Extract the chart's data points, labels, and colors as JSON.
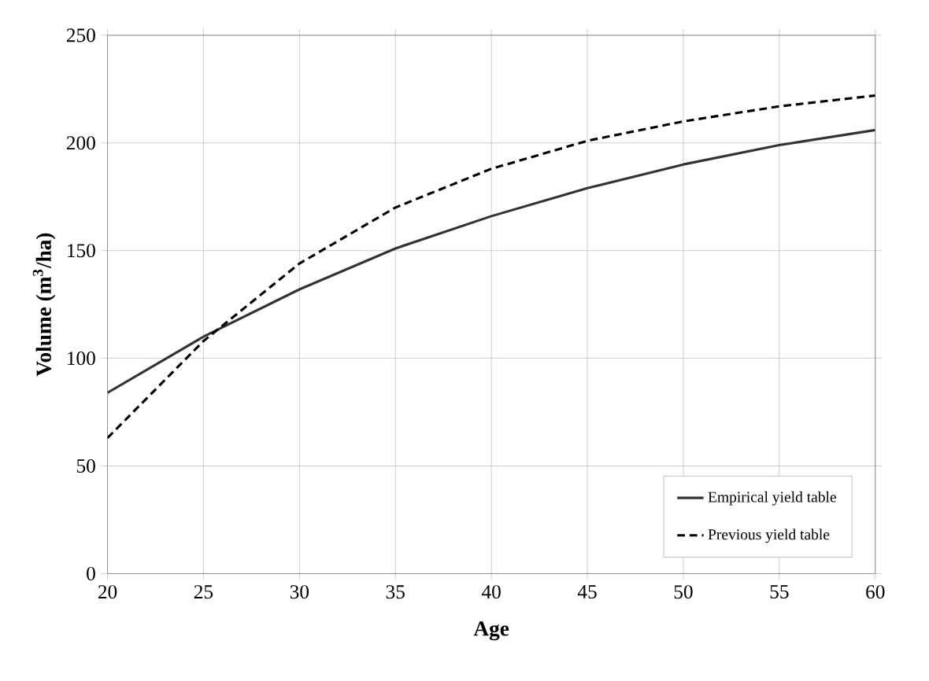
{
  "chart_data": {
    "type": "line",
    "xlabel": "Age",
    "ylabel": "Volume  (m$^{3}$/ha)",
    "x": [
      20,
      25,
      30,
      35,
      40,
      45,
      50,
      55,
      60
    ],
    "series": [
      {
        "name": "Empirical yield table",
        "color": "#333333",
        "line_style": "solid",
        "values": [
          84,
          110,
          132,
          151,
          166,
          179,
          190,
          199,
          206
        ]
      },
      {
        "name": "Previous yield table",
        "color": "#000000",
        "line_style": "dashed",
        "values": [
          63,
          108,
          144,
          170,
          188,
          201,
          210,
          217,
          222
        ]
      }
    ],
    "xlim": [
      20,
      60
    ],
    "xticks": [
      20,
      25,
      30,
      35,
      40,
      45,
      50,
      55,
      60
    ],
    "ylim": [
      0,
      250
    ],
    "yticks": [
      0,
      50,
      100,
      150,
      200,
      250
    ],
    "grid": true,
    "legend": "bottom right",
    "marker": "none"
  }
}
